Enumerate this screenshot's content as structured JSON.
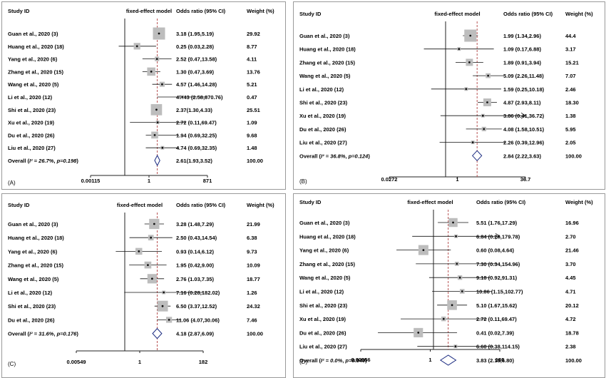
{
  "chart_data": [
    {
      "panel_label": "(A)",
      "type": "forest",
      "headers": {
        "study": "Study ID",
        "model": "fixed-effect model",
        "or": "Odds ratio (95% CI)",
        "weight": "Weight (%)"
      },
      "log_scale": true,
      "xlim": [
        0.00115,
        871
      ],
      "ticks": [
        "0.00115",
        "1",
        "871"
      ],
      "studies": [
        {
          "label": "Guan et al., 2020 (3)",
          "or": 3.18,
          "lo": 1.95,
          "hi": 5.19,
          "ci_text": "3.18 (1.95,5.19)",
          "weight": "29.92"
        },
        {
          "label": "Huang et al., 2020 (18)",
          "or": 0.25,
          "lo": 0.03,
          "hi": 2.28,
          "ci_text": "0.25 (0.03,2.28)",
          "weight": "8.77"
        },
        {
          "label": "Yang et al., 2020 (6)",
          "or": 2.52,
          "lo": 0.47,
          "hi": 13.58,
          "ci_text": "2.52 (0.47,13.58)",
          "weight": "4.11"
        },
        {
          "label": "Zhang et al., 2020 (15)",
          "or": 1.3,
          "lo": 0.47,
          "hi": 3.69,
          "ci_text": "1.30 (0.47,3.69)",
          "weight": "13.76"
        },
        {
          "label": "Wang et al., 2020 (5)",
          "or": 4.57,
          "lo": 1.46,
          "hi": 14.28,
          "ci_text": "4.57 (1.46,14.28)",
          "weight": "5.21"
        },
        {
          "label": "Li et al., 2020 (12)",
          "or": 47.43,
          "lo": 2.58,
          "hi": 870.76,
          "ci_text": "47.43 (2.58,870.76)",
          "weight": "0.47"
        },
        {
          "label": "Shi et al., 2020 (23)",
          "or": 2.37,
          "lo": 1.3,
          "hi": 4.33,
          "ci_text": "2.37(1.30,4.33)",
          "weight": "25.51"
        },
        {
          "label": "Xu et al., 2020 (19)",
          "or": 2.72,
          "lo": 0.11,
          "hi": 69.47,
          "ci_text": "2.72 (0.11,69.47)",
          "weight": "1.09"
        },
        {
          "label": "Du et al., 2020 (26)",
          "or": 1.94,
          "lo": 0.69,
          "hi": 32.25,
          "ci_text": "1.94 (0.69,32.25)",
          "weight": "9.68"
        },
        {
          "label": "Liu et al., 2020 (27)",
          "or": 4.74,
          "lo": 0.69,
          "hi": 32.35,
          "ci_text": "4.74 (0.69,32.35)",
          "weight": "1.48"
        }
      ],
      "overall": {
        "prefix": "Overall (",
        "i2": "I² = 26.7%",
        "p": "p=0.198",
        "suffix": ")",
        "or": 2.61,
        "lo": 1.93,
        "hi": 3.52,
        "ci_text": "2.61(1.93,3.52)",
        "weight": "100.00"
      }
    },
    {
      "panel_label": "(B)",
      "type": "forest",
      "headers": {
        "study": "Study ID",
        "model": "fixed-effect model",
        "or": "Odds ratio (95% CI)",
        "weight": "Weight (%)"
      },
      "log_scale": true,
      "xlim": [
        0.0272,
        36.7
      ],
      "ticks": [
        "0.0272",
        "1",
        "36.7"
      ],
      "studies": [
        {
          "label": "Guan et al., 2020 (3)",
          "or": 1.99,
          "lo": 1.34,
          "hi": 2.96,
          "ci_text": "1.99 (1.34,2.96)",
          "weight": "44.4"
        },
        {
          "label": "Huang et al., 2020 (18)",
          "or": 1.09,
          "lo": 0.17,
          "hi": 6.88,
          "ci_text": "1.09 (0.17,6.88)",
          "weight": "3.17"
        },
        {
          "label": "Zhang et al., 2020 (15)",
          "or": 1.89,
          "lo": 0.91,
          "hi": 3.94,
          "ci_text": "1.89 (0.91,3.94)",
          "weight": "15.21"
        },
        {
          "label": "Wang et al., 2020 (5)",
          "or": 5.09,
          "lo": 2.26,
          "hi": 11.48,
          "ci_text": "5.09 (2.26,11.48)",
          "weight": "7.07"
        },
        {
          "label": "Li et al., 2020 (12)",
          "or": 1.59,
          "lo": 0.25,
          "hi": 10.18,
          "ci_text": "1.59 (0.25,10.18)",
          "weight": "2.46"
        },
        {
          "label": "Shi et al., 2020 (23)",
          "or": 4.87,
          "lo": 2.93,
          "hi": 8.11,
          "ci_text": "4.87 (2.93,8.11)",
          "weight": "18.30"
        },
        {
          "label": "Xu et al., 2020 (19)",
          "or": 3.86,
          "lo": 0.41,
          "hi": 36.72,
          "ci_text": "3.86 (0.41,36.72)",
          "weight": "1.38",
          "arrow": true
        },
        {
          "label": "Du et al., 2020 (26)",
          "or": 4.08,
          "lo": 1.58,
          "hi": 10.51,
          "ci_text": "4.08 (1.58,10.51)",
          "weight": "5.95"
        },
        {
          "label": "Liu et al., 2020 (27)",
          "or": 2.26,
          "lo": 0.39,
          "hi": 12.96,
          "ci_text": "2.26 (0.39,12.96)",
          "weight": "2.05"
        }
      ],
      "overall": {
        "prefix": "Overall (",
        "i2": "I² = 36.8%",
        "p": "p=0.124",
        "suffix": ")",
        "or": 2.84,
        "lo": 2.22,
        "hi": 3.63,
        "ci_text": "2.84 (2.22,3.63)",
        "weight": "100.00"
      }
    },
    {
      "panel_label": "(C)",
      "type": "forest",
      "headers": {
        "study": "Study ID",
        "model": "fixed-effect model",
        "or": "Odds ratio (95% CI)",
        "weight": "Weight (%)"
      },
      "log_scale": true,
      "xlim": [
        0.00549,
        182
      ],
      "ticks": [
        "0.00549",
        "1",
        "182"
      ],
      "studies": [
        {
          "label": "Guan et al., 2020 (3)",
          "or": 3.28,
          "lo": 1.48,
          "hi": 7.29,
          "ci_text": "3.28 (1.48,7.29)",
          "weight": "21.99"
        },
        {
          "label": "Huang et al., 2020 (18)",
          "or": 2.5,
          "lo": 0.43,
          "hi": 14.54,
          "ci_text": "2.50 (0.43,14.54)",
          "weight": "6.38"
        },
        {
          "label": "Yang et al., 2020 (6)",
          "or": 0.93,
          "lo": 0.14,
          "hi": 6.12,
          "ci_text": "0.93 (0.14,6.12)",
          "weight": "9.73"
        },
        {
          "label": "Zhang et al., 2020 (15)",
          "or": 1.95,
          "lo": 0.42,
          "hi": 9.0,
          "ci_text": "1.95 (0.42,9.00)",
          "weight": "10.09"
        },
        {
          "label": "Wang et al., 2020 (5)",
          "or": 2.76,
          "lo": 1.03,
          "hi": 7.35,
          "ci_text": "2.76 (1.03,7.35)",
          "weight": "18.77"
        },
        {
          "label": "Li et al., 2020 (12)",
          "or": 7.16,
          "lo": 0.28,
          "hi": 182.02,
          "ci_text": "7.16 (0.28,182.02)",
          "weight": "1.26"
        },
        {
          "label": "Shi et al., 2020 (23)",
          "or": 6.5,
          "lo": 3.37,
          "hi": 12.52,
          "ci_text": "6.50 (3.37,12.52)",
          "weight": "24.32"
        },
        {
          "label": "Du et al., 2020 (26)",
          "or": 11.06,
          "lo": 4.07,
          "hi": 30.06,
          "ci_text": "11.06 (4.07,30.06)",
          "weight": "7.46"
        }
      ],
      "overall": {
        "prefix": "Overall (",
        "i2": "I² = 31.6%",
        "p": "p=0.176",
        "suffix": ")",
        "or": 4.18,
        "lo": 2.87,
        "hi": 6.09,
        "ci_text": "4.18 (2.87,6.09)",
        "weight": "100.00"
      }
    },
    {
      "panel_label": "(D)",
      "type": "forest",
      "headers": {
        "study": "Study ID",
        "model": "fixed-effect model",
        "or": "Odds ratio (95% CI)",
        "weight": "Weight (%)"
      },
      "log_scale": true,
      "xlim": [
        0.00556,
        180
      ],
      "ticks": [
        "0.00556",
        "1",
        "180"
      ],
      "studies": [
        {
          "label": "Guan et al., 2020 (3)",
          "or": 5.51,
          "lo": 1.76,
          "hi": 17.29,
          "ci_text": "5.51 (1.76,17.29)",
          "weight": "16.96"
        },
        {
          "label": "Huang et al., 2020 (18)",
          "or": 6.84,
          "lo": 0.26,
          "hi": 179.78,
          "ci_text": "6.84 (0.26,179.78)",
          "weight": "2.70",
          "arrow": true
        },
        {
          "label": "Yang et al., 2020 (6)",
          "or": 0.6,
          "lo": 0.08,
          "hi": 4.64,
          "ci_text": "0.60 (0.08,4.64)",
          "weight": "21.46"
        },
        {
          "label": "Zhang et al., 2020 (15)",
          "or": 7.3,
          "lo": 0.34,
          "hi": 154.96,
          "ci_text": "7.30 (0.34,154.96)",
          "weight": "3.70"
        },
        {
          "label": "Wang et al., 2020 (5)",
          "or": 9.18,
          "lo": 0.92,
          "hi": 91.31,
          "ci_text": "9.18 (0.92,91.31)",
          "weight": "4.45"
        },
        {
          "label": "Li et al., 2020 (12)",
          "or": 10.86,
          "lo": 1.15,
          "hi": 102.77,
          "ci_text": "10.86 (1.15,102.77)",
          "weight": "4.71"
        },
        {
          "label": "Shi et al., 2020 (23)",
          "or": 5.1,
          "lo": 1.67,
          "hi": 15.62,
          "ci_text": "5.10 (1.67,15.62)",
          "weight": "20.12"
        },
        {
          "label": "Xu et al., 2020 (19)",
          "or": 2.72,
          "lo": 0.11,
          "hi": 69.47,
          "ci_text": "2.72 (0.11,69.47)",
          "weight": "4.72"
        },
        {
          "label": "Du et al., 2020 (26)",
          "or": 0.41,
          "lo": 0.02,
          "hi": 7.39,
          "ci_text": "0.41 (0.02,7.39)",
          "weight": "18.78"
        },
        {
          "label": "Liu et al., 2020 (27)",
          "or": 6.6,
          "lo": 0.38,
          "hi": 114.15,
          "ci_text": "6.60 (0.38,114.15)",
          "weight": "2.38"
        }
      ],
      "overall": {
        "prefix": "Overall (",
        "i2": "I² = 0.0%",
        "p": "p=0.540",
        "suffix": ")",
        "or": 3.83,
        "lo": 2.15,
        "hi": 6.8,
        "ci_text": "3.83 (2.15,6.80)",
        "weight": "100.00"
      }
    }
  ]
}
